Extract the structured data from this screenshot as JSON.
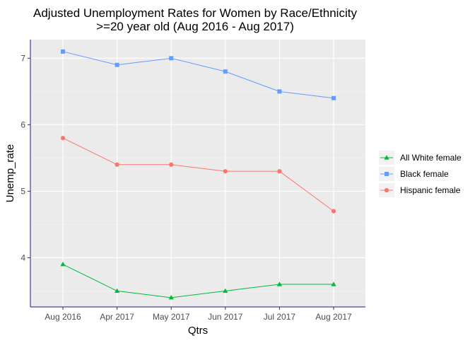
{
  "chart_data": {
    "type": "line",
    "title": "Adjusted Unemployment Rates for Women by Race/Ethnicity",
    "subtitle": ">=20 year old (Aug 2016 - Aug 2017)",
    "xlabel": "Qtrs",
    "ylabel": "Unemp_rate",
    "categories": [
      "Aug 2016",
      "Apr 2017",
      "May 2017",
      "Jun 2017",
      "Jul 2017",
      "Aug 2017"
    ],
    "yticks": [
      4,
      5,
      6,
      7
    ],
    "ylim": [
      3.26,
      7.28
    ],
    "grid": true,
    "legend_position": "right",
    "series": [
      {
        "name": "All White female",
        "values": [
          3.9,
          3.5,
          3.4,
          3.5,
          3.6,
          3.6
        ],
        "color": "#00ba38",
        "marker": "triangle"
      },
      {
        "name": "Black female",
        "values": [
          7.1,
          6.9,
          7.0,
          6.8,
          6.5,
          6.4
        ],
        "color": "#619cff",
        "marker": "square"
      },
      {
        "name": "Hispanic female",
        "values": [
          5.8,
          5.4,
          5.4,
          5.3,
          5.3,
          4.7
        ],
        "color": "#f8766d",
        "marker": "circle"
      }
    ],
    "colors": {
      "panel": "#ebebeb",
      "grid": "#ffffff",
      "axis_frame": "#1a1a8c"
    }
  }
}
